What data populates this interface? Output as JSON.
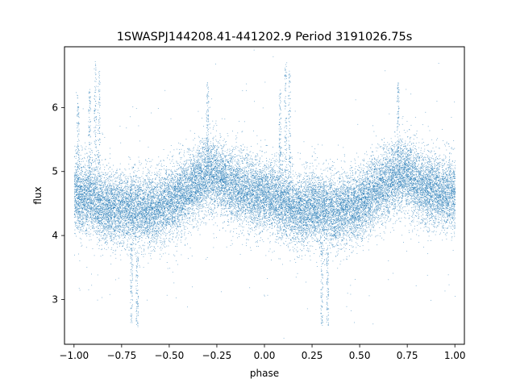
{
  "chart_data": {
    "type": "scatter",
    "title": "1SWASPJ144208.41-441202.9 Period 3191026.75s",
    "xlabel": "phase",
    "ylabel": "flux",
    "xlim": [
      -1.05,
      1.05
    ],
    "ylim": [
      2.3,
      6.95
    ],
    "xticks": [
      -1.0,
      -0.75,
      -0.5,
      -0.25,
      0.0,
      0.25,
      0.5,
      0.75,
      1.0
    ],
    "xtick_labels": [
      "−1.00",
      "−0.75",
      "−0.50",
      "−0.25",
      "0.00",
      "0.25",
      "0.50",
      "0.75",
      "1.00"
    ],
    "yticks": [
      3,
      4,
      5,
      6
    ],
    "ytick_labels": [
      "3",
      "4",
      "5",
      "6"
    ],
    "grid": false,
    "marker_color": "#1f77b4",
    "series": [
      {
        "name": "",
        "profile": {
          "phase": [
            -1.0,
            -0.95,
            -0.9,
            -0.85,
            -0.8,
            -0.75,
            -0.7,
            -0.65,
            -0.6,
            -0.55,
            -0.5,
            -0.45,
            -0.4,
            -0.35,
            -0.3,
            -0.25,
            -0.2,
            -0.15,
            -0.1,
            -0.05,
            0.0,
            0.05,
            0.1,
            0.15,
            0.2,
            0.25,
            0.3,
            0.35,
            0.4,
            0.45,
            0.5,
            0.55,
            0.6,
            0.65,
            0.7,
            0.75,
            0.8,
            0.85,
            0.9,
            0.95,
            1.0
          ],
          "mean_flux": [
            4.65,
            4.62,
            4.6,
            4.45,
            4.4,
            4.45,
            4.4,
            4.38,
            4.4,
            4.45,
            4.5,
            4.6,
            4.75,
            4.85,
            4.95,
            4.95,
            4.8,
            4.75,
            4.7,
            4.65,
            4.65,
            4.6,
            4.55,
            4.4,
            4.4,
            4.45,
            4.4,
            4.38,
            4.4,
            4.45,
            4.5,
            4.6,
            4.75,
            4.85,
            4.95,
            4.95,
            4.8,
            4.75,
            4.7,
            4.65,
            4.65
          ],
          "spread": 0.28,
          "n_points": 26000
        },
        "spikes": [
          {
            "phase": -0.98,
            "ymin": 4.7,
            "ymax": 6.2
          },
          {
            "phase": -0.92,
            "ymin": 4.9,
            "ymax": 6.3
          },
          {
            "phase": -0.89,
            "ymin": 5.0,
            "ymax": 6.75
          },
          {
            "phase": -0.87,
            "ymin": 4.9,
            "ymax": 6.6
          },
          {
            "phase": -0.7,
            "ymin": 2.6,
            "ymax": 3.9
          },
          {
            "phase": -0.67,
            "ymin": 2.6,
            "ymax": 3.8
          },
          {
            "phase": -0.3,
            "ymin": 5.2,
            "ymax": 6.4
          },
          {
            "phase": 0.08,
            "ymin": 5.0,
            "ymax": 6.3
          },
          {
            "phase": 0.11,
            "ymin": 5.0,
            "ymax": 6.75
          },
          {
            "phase": 0.13,
            "ymin": 4.9,
            "ymax": 6.6
          },
          {
            "phase": 0.3,
            "ymin": 2.6,
            "ymax": 3.9
          },
          {
            "phase": 0.33,
            "ymin": 2.6,
            "ymax": 3.8
          },
          {
            "phase": 0.7,
            "ymin": 5.2,
            "ymax": 6.4
          }
        ]
      }
    ]
  }
}
